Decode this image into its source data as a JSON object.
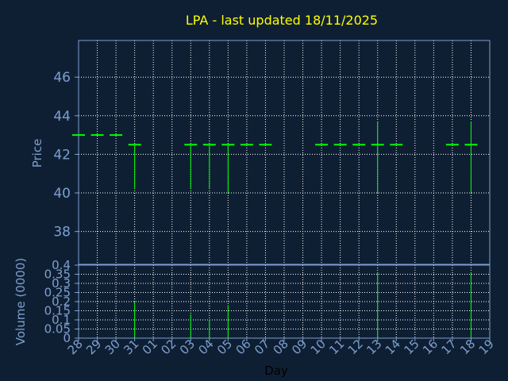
{
  "chart_data": [
    {
      "type": "ohlc",
      "title": "LPA - last updated 18/11/2025",
      "ylabel": "Price",
      "xlabel": "Day",
      "ylim": [
        36.3,
        47.9
      ],
      "yticks": [
        38,
        40,
        42,
        44,
        46
      ],
      "grid": true,
      "x_tick_labels": [
        "28",
        "29",
        "30",
        "31",
        "01",
        "02",
        "03",
        "04",
        "05",
        "06",
        "07",
        "08",
        "09",
        "10",
        "11",
        "12",
        "13",
        "14",
        "15",
        "16",
        "17",
        "18",
        "19"
      ],
      "bars": [
        {
          "day": "28",
          "open": 43.0,
          "high": 43.0,
          "low": 43.0,
          "close": 43.0
        },
        {
          "day": "29",
          "open": 43.0,
          "high": 43.0,
          "low": 43.0,
          "close": 43.0
        },
        {
          "day": "30",
          "open": 43.0,
          "high": 43.0,
          "low": 43.0,
          "close": 43.0
        },
        {
          "day": "31",
          "open": 42.5,
          "high": 42.5,
          "low": 40.2,
          "close": 42.5
        },
        {
          "day": "03",
          "open": 42.5,
          "high": 42.5,
          "low": 40.2,
          "close": 42.5
        },
        {
          "day": "04",
          "open": 42.5,
          "high": 42.5,
          "low": 40.2,
          "close": 42.5
        },
        {
          "day": "05",
          "open": 42.5,
          "high": 42.5,
          "low": 40.0,
          "close": 42.5
        },
        {
          "day": "06",
          "open": 42.5,
          "high": 42.5,
          "low": 42.5,
          "close": 42.5
        },
        {
          "day": "07",
          "open": 42.5,
          "high": 42.5,
          "low": 42.5,
          "close": 42.5
        },
        {
          "day": "10",
          "open": 42.5,
          "high": 42.5,
          "low": 42.5,
          "close": 42.5
        },
        {
          "day": "11",
          "open": 42.5,
          "high": 42.5,
          "low": 42.5,
          "close": 42.5
        },
        {
          "day": "12",
          "open": 42.5,
          "high": 42.5,
          "low": 42.5,
          "close": 42.5
        },
        {
          "day": "13",
          "open": 42.5,
          "high": 43.7,
          "low": 40.0,
          "close": 42.5
        },
        {
          "day": "14",
          "open": 42.5,
          "high": 42.5,
          "low": 42.5,
          "close": 42.5
        },
        {
          "day": "17",
          "open": 42.5,
          "high": 42.5,
          "low": 42.5,
          "close": 42.5
        },
        {
          "day": "18",
          "open": 42.5,
          "high": 43.7,
          "low": 40.0,
          "close": 42.5
        }
      ],
      "colors": {
        "price": "#00ff00",
        "grid": "#ffffff",
        "axis": "#7d9fcf",
        "background": "#0f1f33",
        "title": "#ffff00"
      }
    },
    {
      "type": "bar",
      "ylabel": "Volume (0000)",
      "ylim": [
        0,
        0.4
      ],
      "yticks": [
        "0",
        "0.05",
        "0.1",
        "0.15",
        "0.2",
        "0.25",
        "0.3",
        "0.35",
        "0.4"
      ],
      "grid": true,
      "bars": [
        {
          "day": "31",
          "value": 0.2
        },
        {
          "day": "03",
          "value": 0.13
        },
        {
          "day": "04",
          "value": 0.1
        },
        {
          "day": "05",
          "value": 0.18
        },
        {
          "day": "13",
          "value": 0.36
        },
        {
          "day": "18",
          "value": 0.36
        }
      ],
      "colors": {
        "volume": "#00ff00"
      }
    }
  ]
}
